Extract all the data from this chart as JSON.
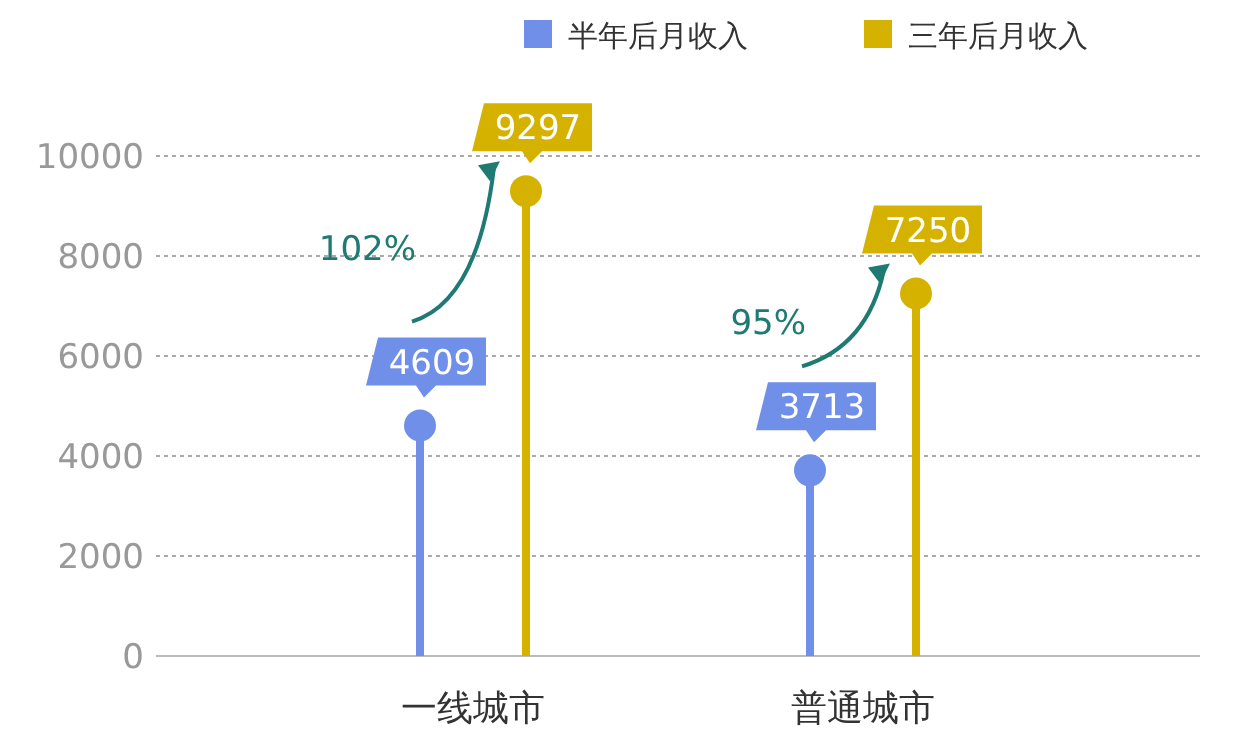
{
  "chart_data": {
    "type": "lollipop",
    "categories": [
      "一线城市",
      "普通城市"
    ],
    "series": [
      {
        "name": "半年后月收入",
        "color": "#6f8fe8",
        "values": [
          4609,
          3713
        ]
      },
      {
        "name": "三年后月收入",
        "color": "#d6b200",
        "values": [
          9297,
          7250
        ]
      }
    ],
    "ylim": [
      0,
      10000
    ],
    "yticks": [
      0,
      2000,
      4000,
      6000,
      8000,
      10000
    ],
    "grid": "y",
    "legend": "top right",
    "marker": "circle",
    "data_labels": true,
    "annotations": [
      "102%",
      "95%"
    ]
  }
}
